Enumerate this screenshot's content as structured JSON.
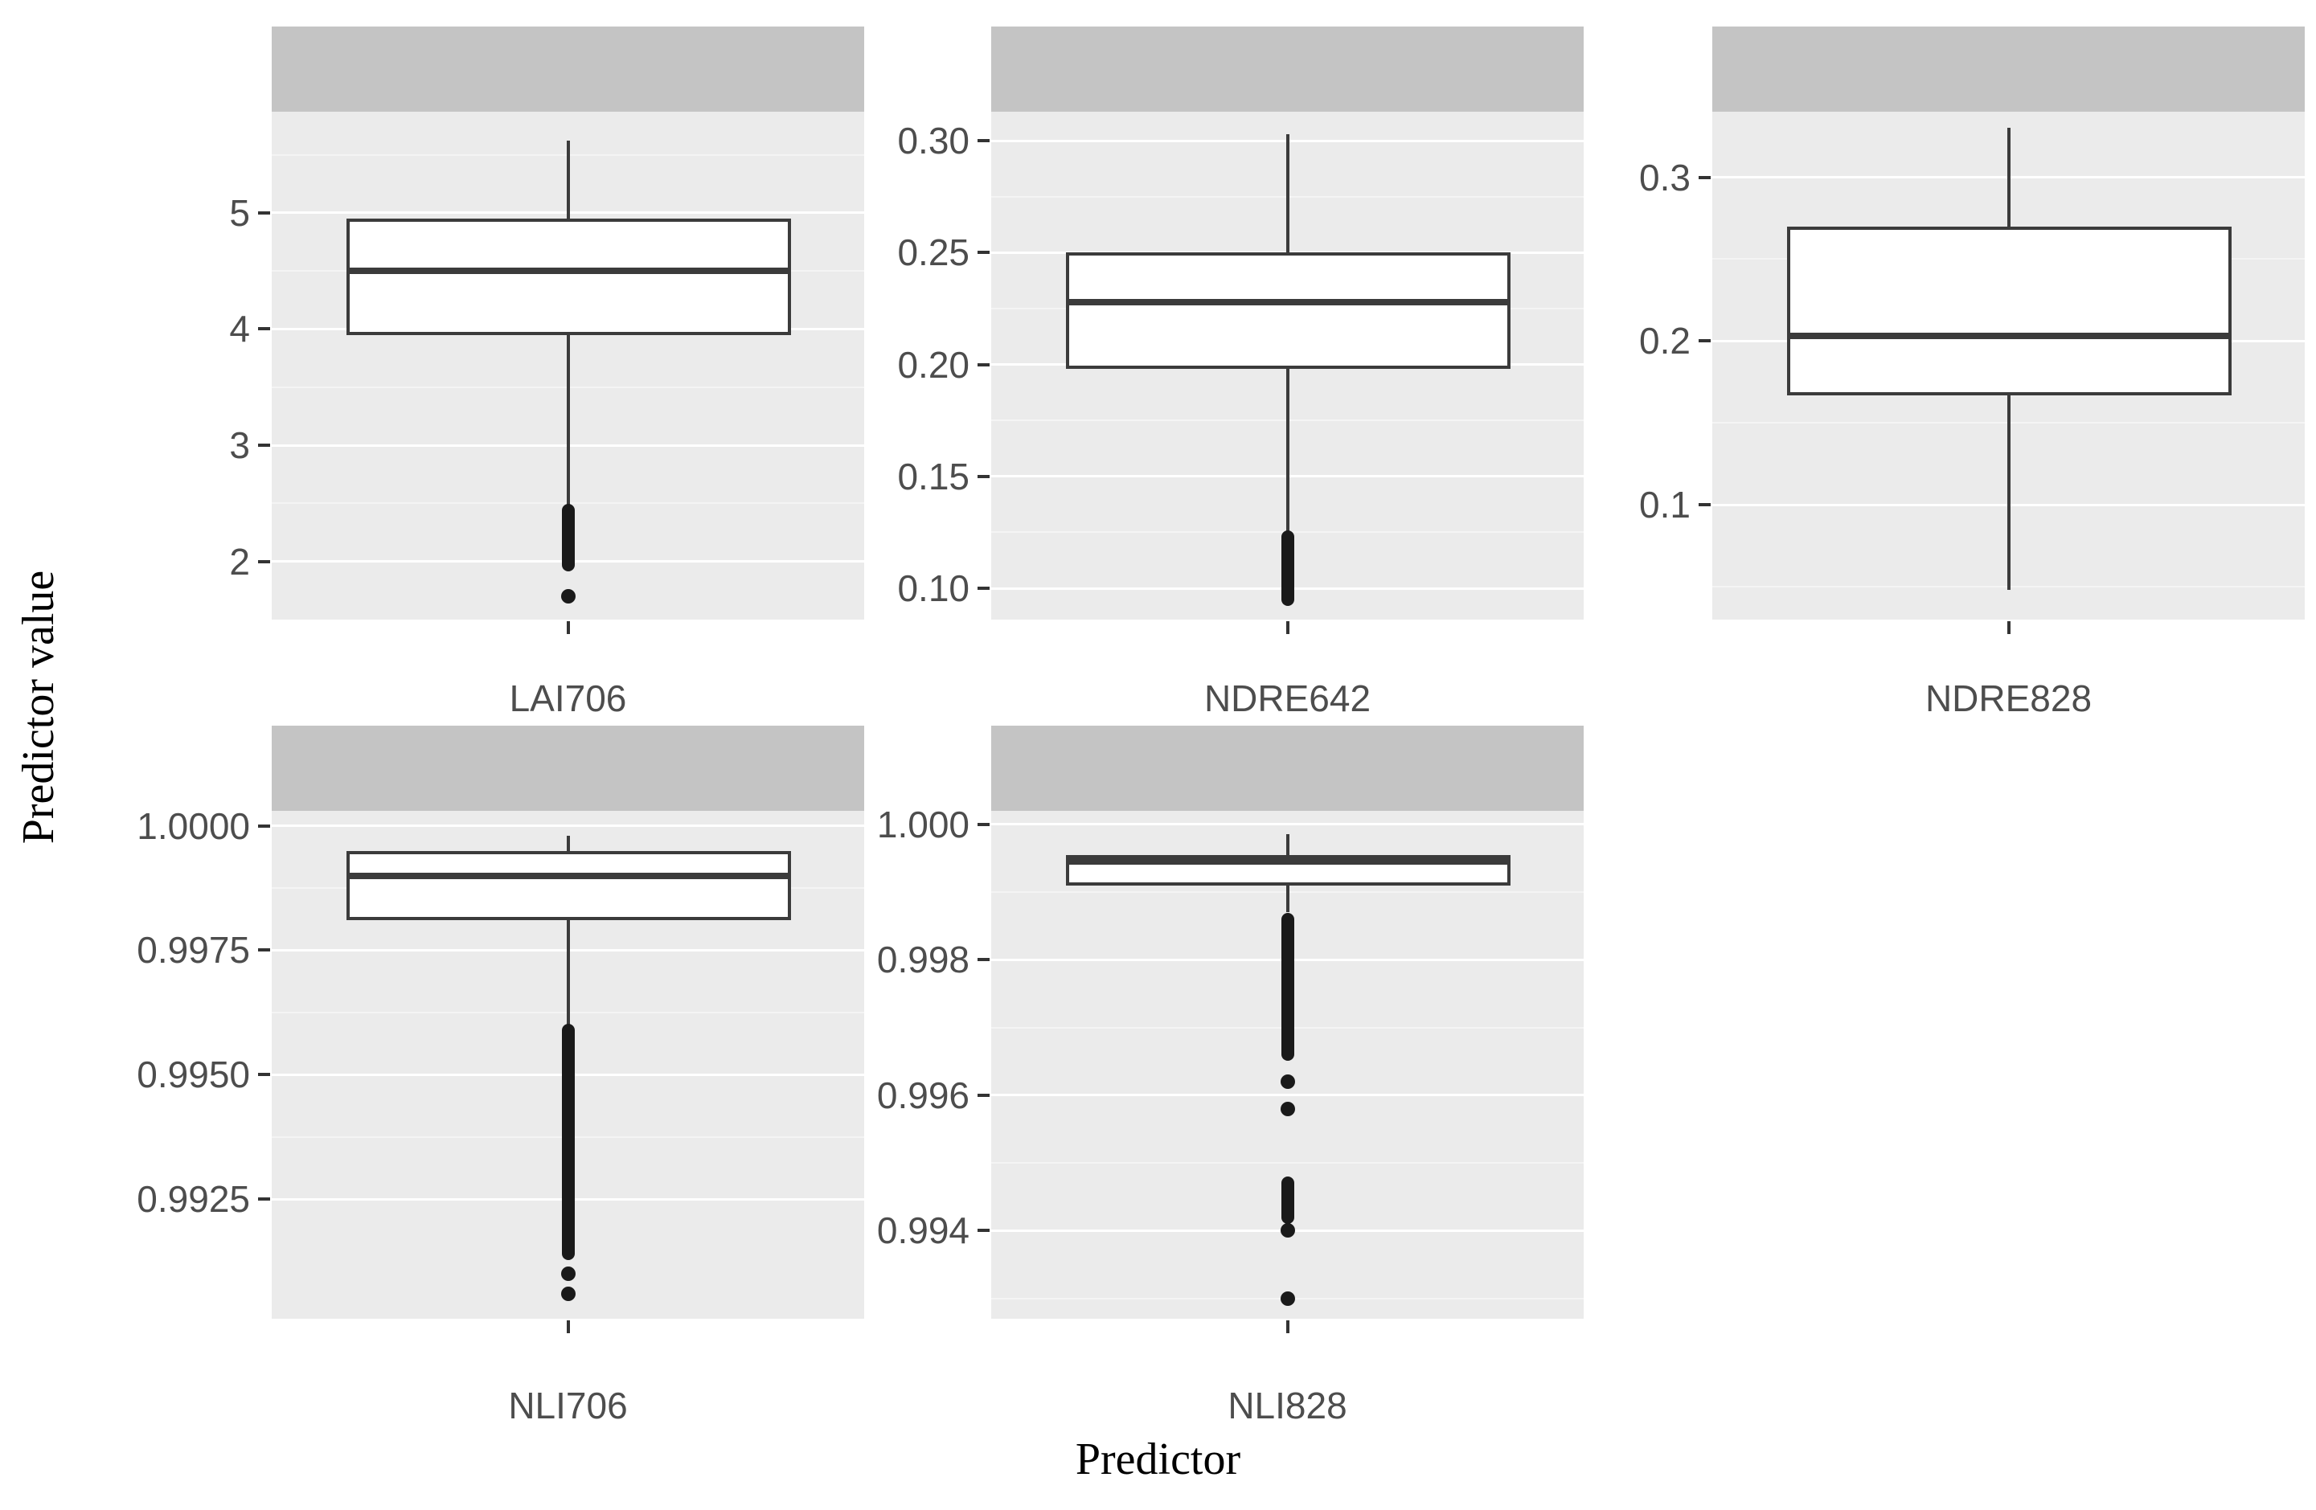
{
  "figure": {
    "x_title": "Predictor",
    "y_title": "Predictor value",
    "colors": {
      "panel_bg": "#ebebeb",
      "strip_bg": "#c4c4c4",
      "grid_major": "#ffffff",
      "grid_minor": "#f4f4f4",
      "box_stroke": "#3b3b3b",
      "outlier": "#1a1a1a",
      "tick_text": "#4d4d4d",
      "tick_mark": "#333333",
      "title_text": "#000000"
    },
    "layout": {
      "rows": 2,
      "cols": 3,
      "grid_on": true,
      "legend": "none",
      "strip_text": ""
    }
  },
  "chart_data": [
    {
      "type": "box",
      "label": "LAI706",
      "ylim": [
        1.5,
        5.87
      ],
      "yticks": [
        {
          "value": 2,
          "label": "2"
        },
        {
          "value": 3,
          "label": "3"
        },
        {
          "value": 4,
          "label": "4"
        },
        {
          "value": 5,
          "label": "5"
        }
      ],
      "minor_ticks": [
        2.5,
        3.5,
        4.5,
        5.5
      ],
      "box": {
        "q1": 3.95,
        "median": 4.5,
        "q3": 4.95,
        "whisker_low": 2.45,
        "whisker_high": 5.62
      },
      "outlier_bands": [
        [
          1.97,
          2.44
        ]
      ],
      "outliers": [
        1.7
      ]
    },
    {
      "type": "box",
      "label": "NDRE642",
      "ylim": [
        0.086,
        0.313
      ],
      "yticks": [
        {
          "value": 0.1,
          "label": "0.10"
        },
        {
          "value": 0.15,
          "label": "0.15"
        },
        {
          "value": 0.2,
          "label": "0.20"
        },
        {
          "value": 0.25,
          "label": "0.25"
        },
        {
          "value": 0.3,
          "label": "0.30"
        }
      ],
      "minor_ticks": [
        0.125,
        0.175,
        0.225,
        0.275
      ],
      "box": {
        "q1": 0.198,
        "median": 0.228,
        "q3": 0.25,
        "whisker_low": 0.125,
        "whisker_high": 0.303
      },
      "outlier_bands": [
        [
          0.095,
          0.123
        ]
      ],
      "outliers": []
    },
    {
      "type": "box",
      "label": "NDRE828",
      "ylim": [
        0.03,
        0.34
      ],
      "yticks": [
        {
          "value": 0.1,
          "label": "0.1"
        },
        {
          "value": 0.2,
          "label": "0.2"
        },
        {
          "value": 0.3,
          "label": "0.3"
        }
      ],
      "minor_ticks": [
        0.05,
        0.15,
        0.25
      ],
      "box": {
        "q1": 0.167,
        "median": 0.203,
        "q3": 0.27,
        "whisker_low": 0.048,
        "whisker_high": 0.33
      },
      "outlier_bands": [],
      "outliers": []
    },
    {
      "type": "box",
      "label": "NLI706",
      "ylim": [
        0.9901,
        1.0003
      ],
      "yticks": [
        {
          "value": 0.9925,
          "label": "0.9925"
        },
        {
          "value": 0.995,
          "label": "0.9950"
        },
        {
          "value": 0.9975,
          "label": "0.9975"
        },
        {
          "value": 1.0,
          "label": "1.0000"
        }
      ],
      "minor_ticks": [
        0.99375,
        0.99625,
        0.99875
      ],
      "box": {
        "q1": 0.9981,
        "median": 0.999,
        "q3": 0.9995,
        "whisker_low": 0.996,
        "whisker_high": 0.9998
      },
      "outlier_bands": [
        [
          0.9914,
          0.9959
        ]
      ],
      "outliers": [
        0.991,
        0.9906
      ]
    },
    {
      "type": "box",
      "label": "NLI828",
      "ylim": [
        0.9927,
        1.0002
      ],
      "yticks": [
        {
          "value": 0.994,
          "label": "0.994"
        },
        {
          "value": 0.996,
          "label": "0.996"
        },
        {
          "value": 0.998,
          "label": "0.998"
        },
        {
          "value": 1.0,
          "label": "1.000"
        }
      ],
      "minor_ticks": [
        0.993,
        0.995,
        0.997,
        0.999
      ],
      "box": {
        "q1": 0.9991,
        "median": 0.99945,
        "q3": 0.99955,
        "whisker_low": 0.9987,
        "whisker_high": 0.99985
      },
      "outlier_bands": [
        [
          0.9966,
          0.9986
        ],
        [
          0.9942,
          0.9947
        ]
      ],
      "outliers": [
        0.9962,
        0.9958,
        0.994,
        0.993
      ]
    }
  ]
}
